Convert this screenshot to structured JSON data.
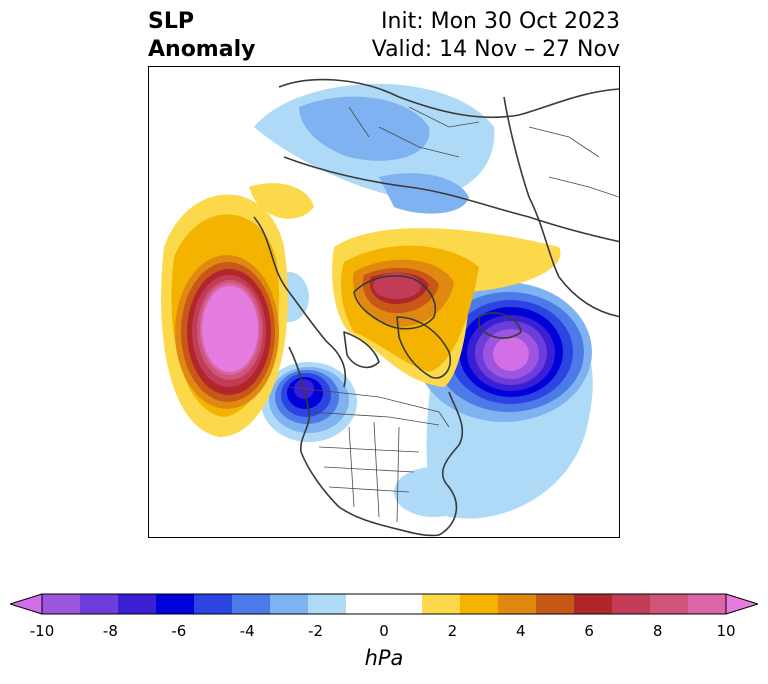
{
  "header": {
    "title_line1": "SLP",
    "title_line2": "Anomaly",
    "init_label": "Init: Mon 30 Oct 2023",
    "valid_label": "Valid: 14 Nov – 27 Nov"
  },
  "colorbar": {
    "unit": "hPa",
    "ticks": [
      "-10",
      "-8",
      "-6",
      "-4",
      "-2",
      "0",
      "2",
      "4",
      "6",
      "8",
      "10"
    ],
    "colors": [
      "#d26fe6",
      "#9d55e0",
      "#6b3ddb",
      "#3b1fd4",
      "#0000d8",
      "#2b44e2",
      "#4c7ae8",
      "#7fb2f0",
      "#aedaf8",
      "#ffffff",
      "#ffffff",
      "#fcd94a",
      "#f3b300",
      "#e08910",
      "#c75818",
      "#b0262a",
      "#c23c58",
      "#cf5579",
      "#dc66a5",
      "#e57de0"
    ],
    "extend": "both"
  },
  "map": {
    "projection": "polar-stereographic",
    "features": [
      "coastlines",
      "country-borders",
      "state-borders"
    ],
    "anomaly_centers": [
      {
        "name": "north-pacific-high",
        "sign": "positive",
        "peak_hPa": 10
      },
      {
        "name": "greenland-arctic-high",
        "sign": "positive",
        "peak_hPa": 7
      },
      {
        "name": "north-atlantic-low",
        "sign": "negative",
        "peak_hPa": -10
      },
      {
        "name": "gulf-of-alaska-low",
        "sign": "negative",
        "peak_hPa": -6
      },
      {
        "name": "siberia-low",
        "sign": "negative",
        "peak_hPa": -3
      },
      {
        "name": "eastern-us-low",
        "sign": "negative",
        "peak_hPa": -2
      }
    ]
  }
}
